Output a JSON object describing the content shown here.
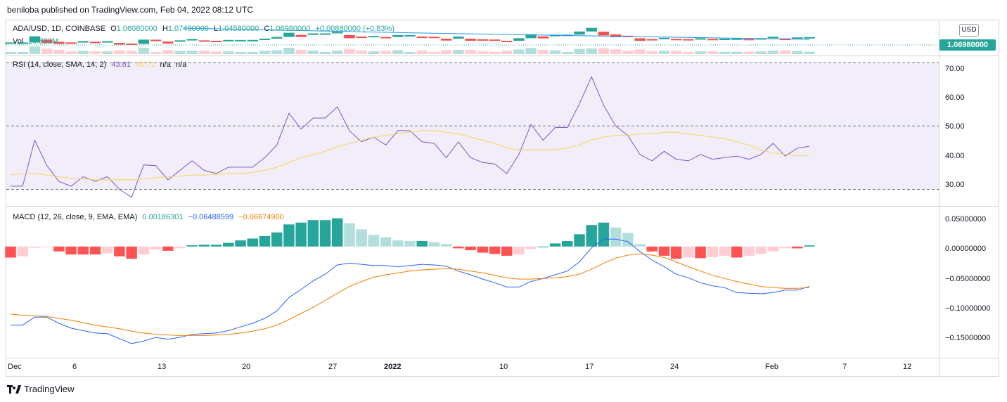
{
  "header": {
    "publish_text": "beniloba published on TradingView.com, Feb 04, 2022 08:12 UTC"
  },
  "main_legend": {
    "symbol": "ADA/USD, 1D, COINBASE",
    "o_label": "O",
    "o_value": "1.06080000",
    "h_label": "H",
    "h_value": "1.07490000",
    "l_label": "L",
    "l_value": "1.04580000",
    "c_label": "C",
    "c_value": "1.06980000",
    "change": "+0.00880000 (+0.83%)",
    "vol_label": "Vol",
    "vol_value": "20.833M"
  },
  "currency": "USD",
  "last_price": "1.06980000",
  "rsi_legend": {
    "label": "RSI (14, close, SMA, 14, 2)",
    "rsi": "43.61",
    "sma": "40.71",
    "na1": "n/a",
    "na2": "n/a"
  },
  "macd_legend": {
    "label": "MACD (12, 26, close, 9, EMA, EMA)",
    "hist": "0.00186301",
    "macd": "−0.06488599",
    "signal": "−0.06674900"
  },
  "rsi_axis": [
    "70.00",
    "60.00",
    "50.00",
    "40.00",
    "30.00"
  ],
  "macd_axis": [
    "0.05000000",
    "0.00000000",
    "−0.05000000",
    "−0.10000000",
    "−0.15000000"
  ],
  "time_axis": [
    "Dec",
    "6",
    "13",
    "20",
    "27",
    "2022",
    "10",
    "17",
    "24",
    "Feb",
    "7",
    "12"
  ],
  "footer": {
    "brand": "TradingView"
  },
  "colors": {
    "up": "#26a69a",
    "down": "#ef5350",
    "rsi": "#7e57c2",
    "rsi_sma": "#f7d35c",
    "macd": "#2962ff",
    "signal": "#f57c00"
  },
  "chart_data": [
    {
      "type": "line",
      "title": "RSI (14, close, SMA, 14, 2)",
      "ylim": [
        25,
        72
      ],
      "bands": [
        30,
        50,
        70
      ],
      "series": [
        {
          "name": "RSI",
          "values": [
            31,
            31,
            45.5,
            37.5,
            32.5,
            31,
            34,
            32.5,
            34,
            30,
            27.5,
            37.7,
            37.5,
            33,
            36,
            39,
            36,
            35,
            37,
            37,
            37,
            40,
            44,
            54,
            49,
            52.5,
            52.5,
            56,
            48.5,
            45,
            46.5,
            44,
            48.5,
            48.5,
            45,
            44.5,
            40,
            45,
            40,
            38.5,
            38,
            35,
            41,
            50.5,
            45.5,
            49.5,
            49.5,
            57,
            65.5,
            56.5,
            50,
            47,
            41,
            39,
            42,
            39.5,
            39,
            41,
            39.5,
            40,
            40.5,
            39.5,
            41,
            44.5,
            40.5,
            43,
            43.61
          ]
        },
        {
          "name": "SMA",
          "values": [
            34.5,
            35,
            35,
            34.5,
            34,
            33.5,
            33.3,
            33,
            33,
            33,
            33,
            33.3,
            33.7,
            34,
            34.2,
            34.5,
            34.5,
            34.7,
            35,
            35,
            35.3,
            36,
            37,
            38.5,
            40,
            41,
            42,
            43.5,
            44.5,
            45.5,
            46.5,
            47,
            47.5,
            48,
            48.5,
            48.5,
            48,
            47.5,
            46.5,
            45.5,
            44.5,
            43,
            42.5,
            42.5,
            42.5,
            42.5,
            43,
            44,
            45.5,
            46.5,
            47,
            47,
            47.5,
            47.5,
            48,
            48,
            47.5,
            47,
            46.5,
            46,
            45,
            44,
            42.5,
            41.5,
            41,
            40.7,
            40.71
          ]
        }
      ]
    },
    {
      "type": "line",
      "title": "MACD (12, 26, close, 9, EMA, EMA)",
      "ylim": [
        -0.18,
        0.065
      ],
      "series": [
        {
          "name": "MACD",
          "values": [
            -0.128,
            -0.128,
            -0.115,
            -0.115,
            -0.125,
            -0.133,
            -0.137,
            -0.141,
            -0.142,
            -0.15,
            -0.158,
            -0.154,
            -0.148,
            -0.151,
            -0.148,
            -0.143,
            -0.142,
            -0.141,
            -0.137,
            -0.131,
            -0.125,
            -0.117,
            -0.105,
            -0.083,
            -0.07,
            -0.056,
            -0.045,
            -0.03,
            -0.027,
            -0.029,
            -0.031,
            -0.031,
            -0.033,
            -0.031,
            -0.029,
            -0.03,
            -0.032,
            -0.04,
            -0.046,
            -0.053,
            -0.059,
            -0.066,
            -0.066,
            -0.057,
            -0.052,
            -0.046,
            -0.04,
            -0.025,
            -0.002,
            0.012,
            0.012,
            0.008,
            -0.008,
            -0.022,
            -0.033,
            -0.045,
            -0.051,
            -0.059,
            -0.064,
            -0.067,
            -0.075,
            -0.076,
            -0.077,
            -0.075,
            -0.071,
            -0.071,
            -0.06489
          ]
        },
        {
          "name": "Signal",
          "values": [
            -0.11,
            -0.112,
            -0.113,
            -0.114,
            -0.117,
            -0.12,
            -0.124,
            -0.128,
            -0.131,
            -0.134,
            -0.138,
            -0.141,
            -0.143,
            -0.144,
            -0.145,
            -0.145,
            -0.145,
            -0.144,
            -0.143,
            -0.141,
            -0.138,
            -0.134,
            -0.128,
            -0.119,
            -0.109,
            -0.099,
            -0.088,
            -0.076,
            -0.065,
            -0.057,
            -0.05,
            -0.046,
            -0.043,
            -0.04,
            -0.038,
            -0.037,
            -0.036,
            -0.037,
            -0.04,
            -0.043,
            -0.047,
            -0.051,
            -0.053,
            -0.053,
            -0.052,
            -0.051,
            -0.049,
            -0.045,
            -0.037,
            -0.027,
            -0.019,
            -0.014,
            -0.012,
            -0.014,
            -0.018,
            -0.025,
            -0.033,
            -0.04,
            -0.047,
            -0.052,
            -0.057,
            -0.061,
            -0.065,
            -0.067,
            -0.068,
            -0.068,
            -0.06675
          ]
        },
        {
          "name": "Histogram",
          "values": [
            -0.018,
            -0.016,
            -0.002,
            -0.001,
            -0.008,
            -0.013,
            -0.013,
            -0.013,
            -0.011,
            -0.016,
            -0.02,
            -0.013,
            -0.005,
            -0.007,
            -0.003,
            0.002,
            0.003,
            0.003,
            0.006,
            0.01,
            0.013,
            0.017,
            0.023,
            0.036,
            0.039,
            0.043,
            0.043,
            0.046,
            0.038,
            0.028,
            0.019,
            0.015,
            0.01,
            0.009,
            0.009,
            0.007,
            0.004,
            -0.003,
            -0.006,
            -0.01,
            -0.012,
            -0.015,
            -0.013,
            -0.004,
            0.0,
            0.005,
            0.009,
            0.02,
            0.035,
            0.039,
            0.031,
            0.022,
            0.004,
            -0.008,
            -0.015,
            -0.02,
            -0.018,
            -0.019,
            -0.017,
            -0.015,
            -0.018,
            -0.015,
            -0.012,
            -0.008,
            -0.003,
            -0.003,
            0.00186
          ]
        }
      ]
    }
  ]
}
